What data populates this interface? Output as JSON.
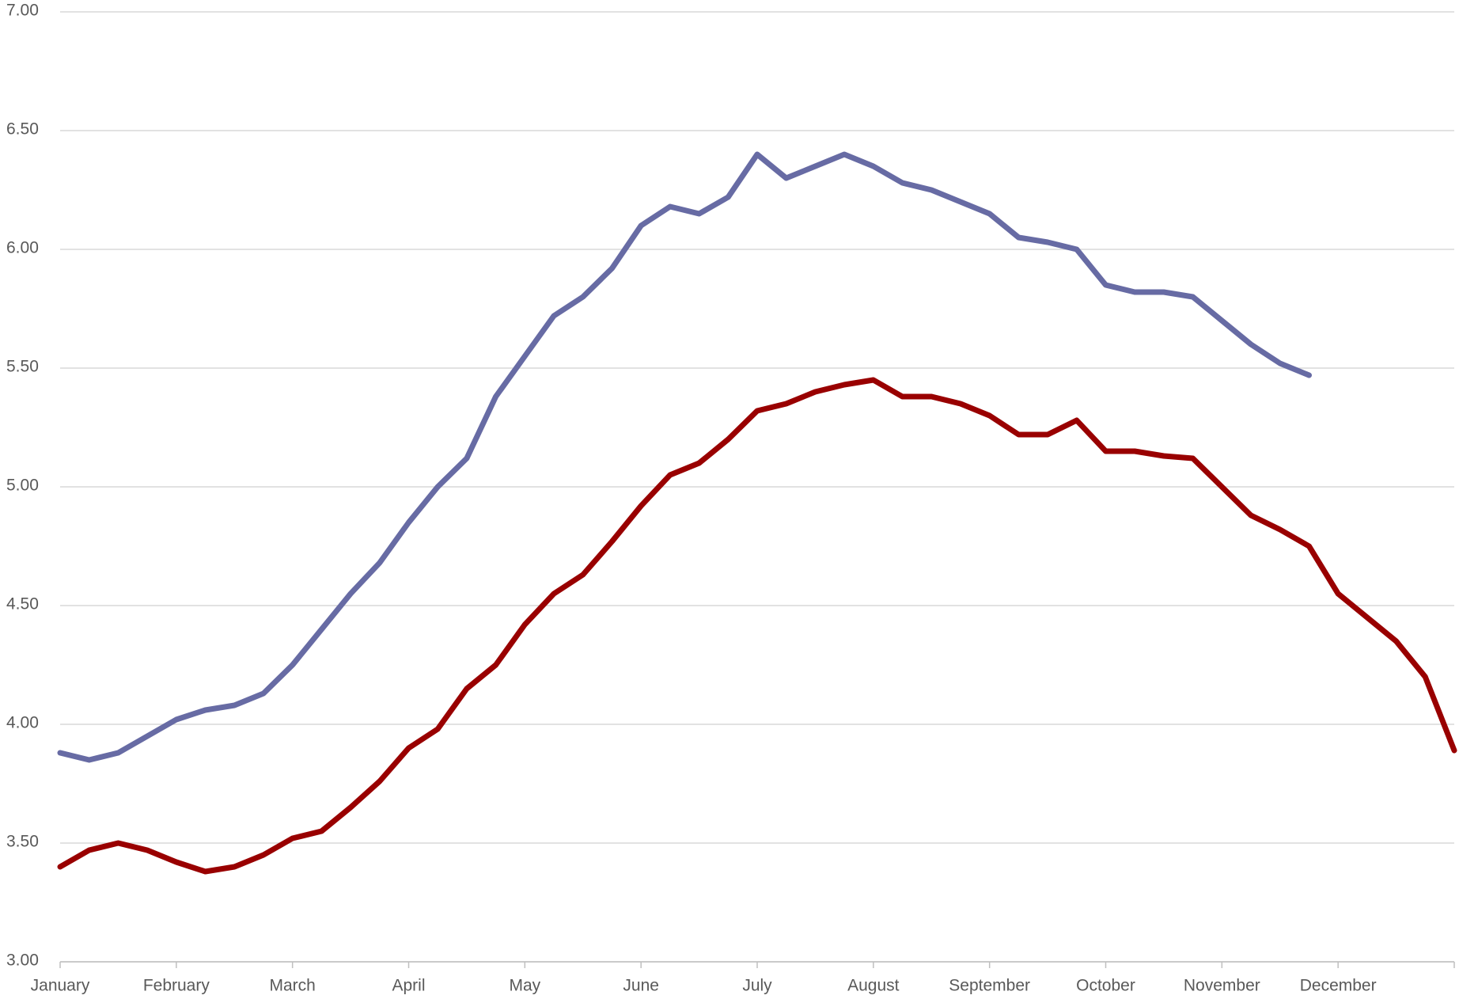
{
  "chart_data": {
    "type": "line",
    "categories": [
      "January",
      null,
      null,
      null,
      "February",
      null,
      null,
      null,
      "March",
      null,
      null,
      null,
      "April",
      null,
      null,
      null,
      "May",
      null,
      null,
      null,
      "June",
      null,
      null,
      null,
      "July",
      null,
      null,
      null,
      "August",
      null,
      null,
      null,
      "September",
      null,
      null,
      null,
      "October",
      null,
      null,
      null,
      "November",
      null,
      null,
      null,
      "December",
      null,
      null,
      null,
      null
    ],
    "series": [
      {
        "color": "#676ba4",
        "values": [
          3.88,
          3.85,
          3.88,
          3.95,
          4.02,
          4.06,
          4.08,
          4.13,
          4.25,
          4.4,
          4.55,
          4.68,
          4.85,
          5.0,
          5.12,
          5.38,
          5.55,
          5.72,
          5.8,
          5.92,
          6.1,
          6.18,
          6.15,
          6.22,
          6.4,
          6.3,
          6.35,
          6.4,
          6.35,
          6.28,
          6.25,
          6.2,
          6.15,
          6.05,
          6.03,
          6.0,
          5.85,
          5.82,
          5.82,
          5.8,
          5.7,
          5.6,
          5.52,
          5.47,
          null,
          null,
          null,
          null,
          null
        ]
      },
      {
        "color": "#990000",
        "values": [
          3.4,
          3.47,
          3.5,
          3.47,
          3.42,
          3.38,
          3.4,
          3.45,
          3.52,
          3.55,
          3.65,
          3.76,
          3.9,
          3.98,
          4.15,
          4.25,
          4.42,
          4.55,
          4.63,
          4.77,
          4.92,
          5.05,
          5.1,
          5.2,
          5.32,
          5.35,
          5.4,
          5.43,
          5.45,
          5.38,
          5.38,
          5.35,
          5.3,
          5.22,
          5.22,
          5.28,
          5.15,
          5.15,
          5.13,
          5.12,
          5.0,
          4.88,
          4.82,
          4.75,
          4.55,
          4.45,
          4.35,
          4.2,
          3.89
        ]
      }
    ],
    "ylim": [
      3,
      7
    ],
    "yticks": [
      {
        "value": 3,
        "label": "3.00"
      },
      {
        "value": 3.5,
        "label": "3.50"
      },
      {
        "value": 4,
        "label": "4.00"
      },
      {
        "value": 4.5,
        "label": "4.50"
      },
      {
        "value": 5,
        "label": "5.00"
      },
      {
        "value": 5.5,
        "label": "5.50"
      },
      {
        "value": 6,
        "label": "6.00"
      },
      {
        "value": 6.5,
        "label": "6.50"
      },
      {
        "value": 7,
        "label": "7.00"
      }
    ],
    "grid": true
  }
}
